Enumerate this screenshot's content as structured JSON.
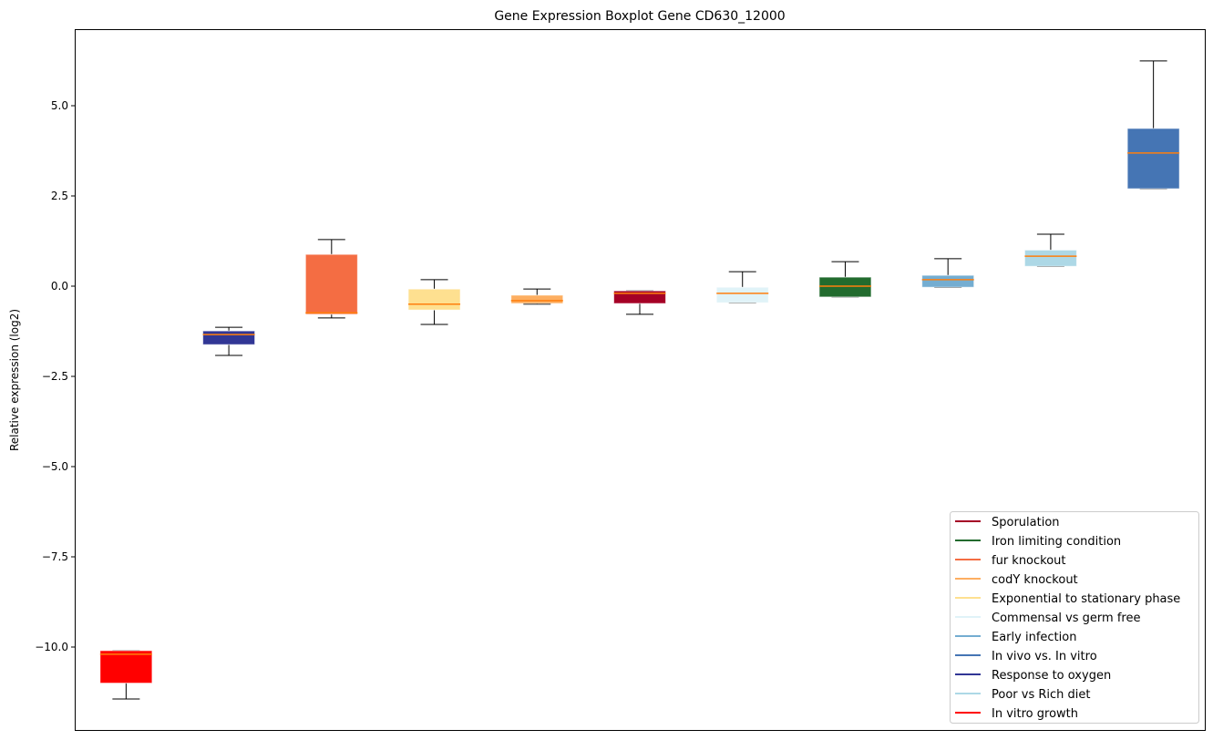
{
  "chart_data": {
    "type": "boxplot",
    "title": "Gene Expression Boxplot Gene CD630_12000",
    "xlabel": "",
    "ylabel": "Relative expression (log2)",
    "ylim": [
      -12.3,
      7.1
    ],
    "yticks": [
      5.0,
      2.5,
      0.0,
      -2.5,
      -5.0,
      -7.5,
      -10.0
    ],
    "ytick_labels": [
      "5.0",
      "2.5",
      "0.0",
      "−2.5",
      "−5.0",
      "−7.5",
      "−10.0"
    ],
    "grid": false,
    "legend_position": "lower-right",
    "boxes": [
      {
        "name": "In vitro growth",
        "color": "#ff0000",
        "whisker_low": -11.44,
        "q1": -11.0,
        "median": -10.2,
        "q3": -10.1,
        "whisker_high": -10.1
      },
      {
        "name": "Response to oxygen",
        "color": "#313695",
        "whisker_low": -1.92,
        "q1": -1.62,
        "median": -1.34,
        "q3": -1.24,
        "whisker_high": -1.14
      },
      {
        "name": "fur knockout",
        "color": "#f46d43",
        "whisker_low": -0.88,
        "q1": -0.78,
        "median": -0.74,
        "q3": 0.88,
        "whisker_high": 1.29
      },
      {
        "name": "Exponential to stationary phase",
        "color": "#fee090",
        "whisker_low": -1.06,
        "q1": -0.66,
        "median": -0.5,
        "q3": -0.08,
        "whisker_high": 0.18
      },
      {
        "name": "codY knockout",
        "color": "#fdae61",
        "whisker_low": -0.5,
        "q1": -0.48,
        "median": -0.4,
        "q3": -0.25,
        "whisker_high": -0.08
      },
      {
        "name": "Sporulation",
        "color": "#a50026",
        "whisker_low": -0.78,
        "q1": -0.48,
        "median": -0.2,
        "q3": -0.13,
        "whisker_high": -0.13
      },
      {
        "name": "Commensal vs germ free",
        "color": "#e0f3f8",
        "whisker_low": -0.46,
        "q1": -0.46,
        "median": -0.2,
        "q3": -0.03,
        "whisker_high": 0.4
      },
      {
        "name": "Iron limiting condition",
        "color": "#226b2e",
        "whisker_low": -0.3,
        "q1": -0.3,
        "median": 0.0,
        "q3": 0.25,
        "whisker_high": 0.68
      },
      {
        "name": "Early infection",
        "color": "#74add1",
        "whisker_low": -0.03,
        "q1": -0.03,
        "median": 0.18,
        "q3": 0.3,
        "whisker_high": 0.76
      },
      {
        "name": "Poor vs Rich diet",
        "color": "#add8e6",
        "whisker_low": 0.55,
        "q1": 0.55,
        "median": 0.83,
        "q3": 1.0,
        "whisker_high": 1.44
      },
      {
        "name": "In vivo vs. In vitro",
        "color": "#4575b4",
        "whisker_low": 2.7,
        "q1": 2.7,
        "median": 3.69,
        "q3": 4.37,
        "whisker_high": 6.24
      }
    ],
    "median_color": "#ff7f0e",
    "legend": [
      {
        "label": "Sporulation",
        "color": "#a50026"
      },
      {
        "label": "Iron limiting condition",
        "color": "#226b2e"
      },
      {
        "label": "fur knockout",
        "color": "#f46d43"
      },
      {
        "label": "codY knockout",
        "color": "#fdae61"
      },
      {
        "label": "Exponential to stationary phase",
        "color": "#fee090"
      },
      {
        "label": "Commensal vs germ free",
        "color": "#e0f3f8"
      },
      {
        "label": "Early infection",
        "color": "#74add1"
      },
      {
        "label": "In vivo vs. In vitro",
        "color": "#4575b4"
      },
      {
        "label": "Response to oxygen",
        "color": "#313695"
      },
      {
        "label": "Poor vs Rich diet",
        "color": "#add8e6"
      },
      {
        "label": "In vitro growth",
        "color": "#ff0000"
      }
    ]
  }
}
